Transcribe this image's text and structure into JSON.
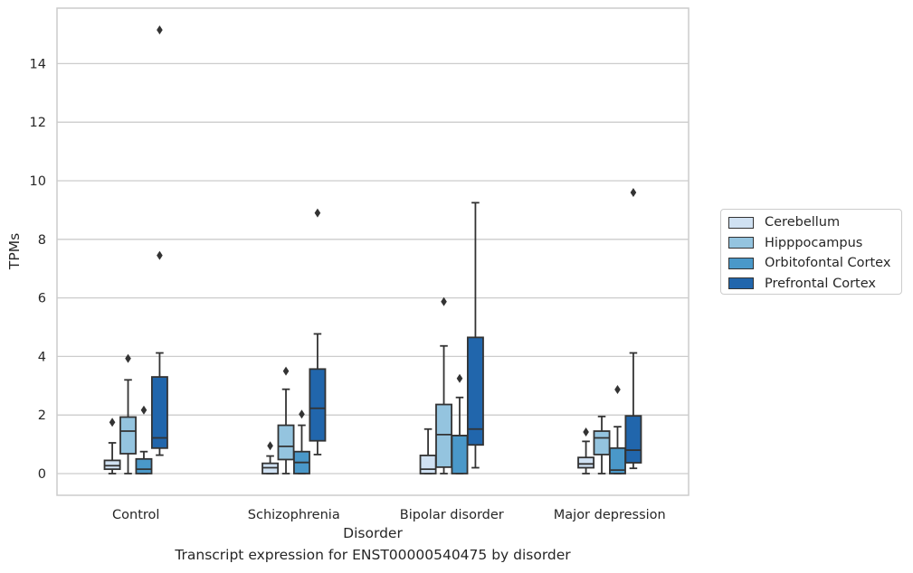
{
  "caption": "Transcript expression for ENST00000540475 by disorder",
  "chart_data": {
    "type": "box",
    "xlabel": "Disorder",
    "ylabel": "TPMs",
    "ylim": [
      -0.75,
      15.9
    ],
    "yticks": [
      0,
      2,
      4,
      6,
      8,
      10,
      12,
      14
    ],
    "grid": "horizontal",
    "legend_position": "right",
    "categories": [
      "Control",
      "Schizophrenia",
      "Bipolar disorder",
      "Major depression"
    ],
    "series": [
      {
        "name": "Cerebellum",
        "color": "#d0e1f2",
        "boxes": [
          {
            "whisker_low": 0.0,
            "q1": 0.15,
            "median": 0.27,
            "q3": 0.45,
            "whisker_high": 1.05,
            "outliers": [
              1.75
            ]
          },
          {
            "whisker_low": 0.0,
            "q1": 0.0,
            "median": 0.2,
            "q3": 0.35,
            "whisker_high": 0.6,
            "outliers": [
              0.95
            ]
          },
          {
            "whisker_low": 0.0,
            "q1": 0.0,
            "median": 0.15,
            "q3": 0.62,
            "whisker_high": 1.52,
            "outliers": []
          },
          {
            "whisker_low": 0.0,
            "q1": 0.2,
            "median": 0.33,
            "q3": 0.55,
            "whisker_high": 1.1,
            "outliers": [
              1.42
            ]
          }
        ]
      },
      {
        "name": "Hipppocampus",
        "color": "#94c4df",
        "boxes": [
          {
            "whisker_low": 0.0,
            "q1": 0.68,
            "median": 1.45,
            "q3": 1.93,
            "whisker_high": 3.2,
            "outliers": [
              3.93
            ]
          },
          {
            "whisker_low": 0.0,
            "q1": 0.48,
            "median": 0.93,
            "q3": 1.65,
            "whisker_high": 2.88,
            "outliers": [
              3.5
            ]
          },
          {
            "whisker_low": 0.0,
            "q1": 0.22,
            "median": 1.33,
            "q3": 2.36,
            "whisker_high": 4.36,
            "outliers": [
              5.87
            ]
          },
          {
            "whisker_low": 0.0,
            "q1": 0.65,
            "median": 1.22,
            "q3": 1.45,
            "whisker_high": 1.95,
            "outliers": []
          }
        ]
      },
      {
        "name": "Orbitofontal Cortex",
        "color": "#4a98c9",
        "boxes": [
          {
            "whisker_low": 0.0,
            "q1": 0.0,
            "median": 0.15,
            "q3": 0.5,
            "whisker_high": 0.75,
            "outliers": [
              2.17
            ]
          },
          {
            "whisker_low": 0.0,
            "q1": 0.0,
            "median": 0.38,
            "q3": 0.75,
            "whisker_high": 1.65,
            "outliers": [
              2.03
            ]
          },
          {
            "whisker_low": 0.0,
            "q1": 0.0,
            "median": 1.3,
            "q3": 1.3,
            "whisker_high": 2.6,
            "outliers": [
              3.25
            ]
          },
          {
            "whisker_low": 0.0,
            "q1": 0.0,
            "median": 0.12,
            "q3": 0.87,
            "whisker_high": 1.6,
            "outliers": [
              2.87
            ]
          }
        ]
      },
      {
        "name": "Prefrontal Cortex",
        "color": "#2166ac",
        "boxes": [
          {
            "whisker_low": 0.63,
            "q1": 0.87,
            "median": 1.22,
            "q3": 3.3,
            "whisker_high": 4.12,
            "outliers": [
              7.45,
              15.15
            ]
          },
          {
            "whisker_low": 0.65,
            "q1": 1.12,
            "median": 2.23,
            "q3": 3.57,
            "whisker_high": 4.77,
            "outliers": [
              8.9
            ]
          },
          {
            "whisker_low": 0.2,
            "q1": 0.98,
            "median": 1.52,
            "q3": 4.65,
            "whisker_high": 9.25,
            "outliers": []
          },
          {
            "whisker_low": 0.18,
            "q1": 0.37,
            "median": 0.8,
            "q3": 1.97,
            "whisker_high": 4.12,
            "outliers": [
              9.6
            ]
          }
        ]
      }
    ]
  }
}
